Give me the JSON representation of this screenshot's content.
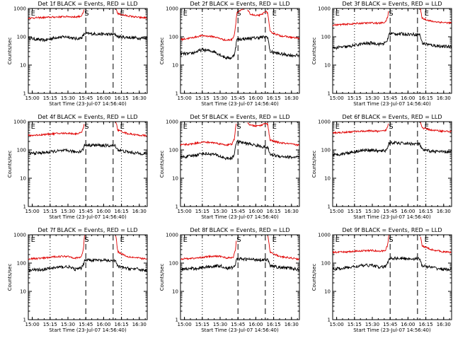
{
  "figure": {
    "background": "#ffffff",
    "events_color": "#000000",
    "lld_color": "#e00000"
  },
  "chart_data": [
    {
      "type": "line",
      "title": "Det 1f BLACK = Events, RED = LLD",
      "xlabel": "Start Time (23-Jul-07 14:56:40)",
      "ylabel": "Counts/sec",
      "y_scale": "log",
      "ylim": [
        1,
        1000
      ],
      "x_ticks": [
        "15:00",
        "15:15",
        "15:30",
        "15:45",
        "16:00",
        "16:15",
        "16:30"
      ],
      "y_ticks": [
        "1",
        "10",
        "100",
        "1000"
      ],
      "markers": [
        {
          "label": "E",
          "time": "15:00"
        },
        {
          "label": "S",
          "time": "15:45"
        },
        {
          "label": "E",
          "time": "16:15"
        }
      ],
      "vlines_dotted": [
        "15:15",
        "16:15"
      ],
      "vlines_dashed": [
        "15:45",
        "16:08"
      ],
      "series": [
        {
          "name": "Events",
          "color": "#000000",
          "x": [
            "14:57",
            "15:10",
            "15:20",
            "15:30",
            "15:36",
            "15:41",
            "15:43",
            "15:44",
            "16:10",
            "16:12",
            "16:20",
            "16:30",
            "16:35"
          ],
          "y": [
            90,
            75,
            95,
            100,
            85,
            90,
            110,
            130,
            120,
            100,
            95,
            90,
            90
          ]
        },
        {
          "name": "LLD",
          "color": "#e00000",
          "x": [
            "14:57",
            "15:10",
            "15:20",
            "15:30",
            "15:36",
            "15:41",
            "15:43",
            "15:44",
            "16:10",
            "16:12",
            "16:20",
            "16:30",
            "16:35"
          ],
          "y": [
            460,
            480,
            500,
            520,
            500,
            540,
            700,
            1100,
            1100,
            650,
            550,
            480,
            470
          ]
        }
      ]
    },
    {
      "type": "line",
      "title": "Det 2f BLACK = Events, RED = LLD",
      "xlabel": "Start Time (23-Jul-07 14:56:40)",
      "ylabel": "Counts/sec",
      "y_scale": "log",
      "ylim": [
        1,
        1000
      ],
      "x_ticks": [
        "15:00",
        "15:15",
        "15:30",
        "15:45",
        "16:00",
        "16:15",
        "16:30"
      ],
      "y_ticks": [
        "1",
        "10",
        "100",
        "1000"
      ],
      "markers": [
        {
          "label": "E",
          "time": "15:00"
        },
        {
          "label": "S",
          "time": "15:45"
        },
        {
          "label": "E",
          "time": "16:15"
        }
      ],
      "vlines_dotted": [
        "15:15",
        "16:15"
      ],
      "vlines_dashed": [
        "15:45",
        "16:08"
      ],
      "series": [
        {
          "name": "Events",
          "color": "#000000",
          "x": [
            "14:57",
            "15:05",
            "15:15",
            "15:25",
            "15:35",
            "15:40",
            "15:42",
            "15:43",
            "15:44",
            "16:10",
            "16:12",
            "16:20",
            "16:30",
            "16:35"
          ],
          "y": [
            25,
            25,
            35,
            30,
            18,
            18,
            25,
            40,
            80,
            100,
            30,
            25,
            22,
            22
          ]
        },
        {
          "name": "LLD",
          "color": "#e00000",
          "x": [
            "14:57",
            "15:05",
            "15:15",
            "15:25",
            "15:35",
            "15:40",
            "15:42",
            "15:43",
            "15:44",
            "15:52",
            "15:55",
            "16:00",
            "16:05",
            "16:08",
            "16:10",
            "16:12",
            "16:20",
            "16:30",
            "16:35"
          ],
          "y": [
            80,
            90,
            110,
            100,
            75,
            80,
            120,
            250,
            700,
            1100,
            650,
            550,
            600,
            800,
            700,
            150,
            110,
            95,
            90
          ]
        }
      ]
    },
    {
      "type": "line",
      "title": "Det 3f BLACK = Events, RED = LLD",
      "xlabel": "Start Time (23-Jul-07 14:56:40)",
      "ylabel": "Counts/sec",
      "y_scale": "log",
      "ylim": [
        1,
        1000
      ],
      "x_ticks": [
        "15:00",
        "15:15",
        "15:30",
        "15:45",
        "16:00",
        "16:15",
        "16:30"
      ],
      "y_ticks": [
        "1",
        "10",
        "100",
        "1000"
      ],
      "markers": [
        {
          "label": "E",
          "time": "15:00"
        },
        {
          "label": "S",
          "time": "15:45"
        },
        {
          "label": "E",
          "time": "16:15"
        }
      ],
      "vlines_dotted": [
        "15:15",
        "16:15"
      ],
      "vlines_dashed": [
        "15:45",
        "16:08"
      ],
      "series": [
        {
          "name": "Events",
          "color": "#000000",
          "x": [
            "14:57",
            "15:10",
            "15:20",
            "15:30",
            "15:36",
            "15:41",
            "15:43",
            "15:44",
            "16:10",
            "16:12",
            "16:20",
            "16:30",
            "16:35"
          ],
          "y": [
            40,
            45,
            55,
            60,
            55,
            60,
            80,
            130,
            120,
            60,
            50,
            45,
            45
          ]
        },
        {
          "name": "LLD",
          "color": "#e00000",
          "x": [
            "14:57",
            "15:10",
            "15:20",
            "15:30",
            "15:36",
            "15:41",
            "15:43",
            "15:44",
            "16:10",
            "16:12",
            "16:20",
            "16:30",
            "16:35"
          ],
          "y": [
            260,
            280,
            300,
            310,
            300,
            330,
            500,
            1100,
            1100,
            450,
            350,
            320,
            310
          ]
        }
      ]
    },
    {
      "type": "line",
      "title": "Det 4f BLACK = Events, RED = LLD",
      "xlabel": "Start Time (23-Jul-07 14:56:40)",
      "ylabel": "Counts/sec",
      "y_scale": "log",
      "ylim": [
        1,
        1000
      ],
      "x_ticks": [
        "15:00",
        "15:15",
        "15:30",
        "15:45",
        "16:00",
        "16:15",
        "16:30"
      ],
      "y_ticks": [
        "1",
        "10",
        "100",
        "1000"
      ],
      "markers": [
        {
          "label": "E",
          "time": "15:00"
        },
        {
          "label": "S",
          "time": "15:45"
        },
        {
          "label": "E",
          "time": "16:15"
        }
      ],
      "vlines_dotted": [
        "15:15",
        "16:15"
      ],
      "vlines_dashed": [
        "15:45",
        "16:08"
      ],
      "series": [
        {
          "name": "Events",
          "color": "#000000",
          "x": [
            "14:57",
            "15:10",
            "15:20",
            "15:30",
            "15:36",
            "15:41",
            "15:43",
            "15:44",
            "16:10",
            "16:12",
            "16:20",
            "16:30",
            "16:35"
          ],
          "y": [
            75,
            80,
            90,
            95,
            85,
            90,
            110,
            150,
            140,
            100,
            85,
            75,
            75
          ]
        },
        {
          "name": "LLD",
          "color": "#e00000",
          "x": [
            "14:57",
            "15:10",
            "15:20",
            "15:30",
            "15:36",
            "15:41",
            "15:43",
            "15:44",
            "16:10",
            "16:12",
            "16:20",
            "16:30",
            "16:35"
          ],
          "y": [
            320,
            350,
            380,
            390,
            370,
            400,
            600,
            1100,
            1100,
            500,
            380,
            330,
            320
          ]
        }
      ]
    },
    {
      "type": "line",
      "title": "Det 5f BLACK = Events, RED = LLD",
      "xlabel": "Start Time (23-Jul-07 14:56:40)",
      "ylabel": "Counts/sec",
      "y_scale": "log",
      "ylim": [
        1,
        1000
      ],
      "x_ticks": [
        "15:00",
        "15:15",
        "15:30",
        "15:45",
        "16:00",
        "16:15",
        "16:30"
      ],
      "y_ticks": [
        "1",
        "10",
        "100",
        "1000"
      ],
      "markers": [
        {
          "label": "E",
          "time": "15:00"
        },
        {
          "label": "S",
          "time": "15:45"
        },
        {
          "label": "E",
          "time": "16:15"
        }
      ],
      "vlines_dotted": [
        "15:15",
        "16:15"
      ],
      "vlines_dashed": [
        "15:45",
        "16:08"
      ],
      "series": [
        {
          "name": "Events",
          "color": "#000000",
          "x": [
            "14:57",
            "15:05",
            "15:15",
            "15:25",
            "15:35",
            "15:40",
            "15:42",
            "15:43",
            "15:44",
            "16:10",
            "16:12",
            "16:20",
            "16:30",
            "16:35"
          ],
          "y": [
            55,
            60,
            75,
            70,
            50,
            50,
            70,
            150,
            200,
            120,
            70,
            60,
            55,
            55
          ]
        },
        {
          "name": "LLD",
          "color": "#e00000",
          "x": [
            "14:57",
            "15:05",
            "15:15",
            "15:25",
            "15:35",
            "15:40",
            "15:42",
            "15:43",
            "15:44",
            "15:52",
            "15:55",
            "16:00",
            "16:05",
            "16:08",
            "16:10",
            "16:12",
            "16:20",
            "16:30",
            "16:35"
          ],
          "y": [
            150,
            160,
            190,
            180,
            150,
            160,
            250,
            600,
            1100,
            1100,
            750,
            700,
            750,
            900,
            800,
            220,
            180,
            160,
            150
          ]
        }
      ]
    },
    {
      "type": "line",
      "title": "Det 6f BLACK = Events, RED = LLD",
      "xlabel": "Start Time (23-Jul-07 14:56:40)",
      "ylabel": "Counts/sec",
      "y_scale": "log",
      "ylim": [
        1,
        1000
      ],
      "x_ticks": [
        "15:00",
        "15:15",
        "15:30",
        "15:45",
        "16:00",
        "16:15",
        "16:30"
      ],
      "y_ticks": [
        "1",
        "10",
        "100",
        "1000"
      ],
      "markers": [
        {
          "label": "E",
          "time": "15:00"
        },
        {
          "label": "S",
          "time": "15:45"
        },
        {
          "label": "E",
          "time": "16:15"
        }
      ],
      "vlines_dotted": [
        "15:15",
        "16:15"
      ],
      "vlines_dashed": [
        "15:45",
        "16:08"
      ],
      "series": [
        {
          "name": "Events",
          "color": "#000000",
          "x": [
            "14:57",
            "15:10",
            "15:20",
            "15:30",
            "15:36",
            "15:41",
            "15:43",
            "15:44",
            "16:10",
            "16:12",
            "16:20",
            "16:30",
            "16:35"
          ],
          "y": [
            65,
            80,
            95,
            100,
            90,
            95,
            120,
            180,
            160,
            100,
            90,
            85,
            85
          ]
        },
        {
          "name": "LLD",
          "color": "#e00000",
          "x": [
            "14:57",
            "15:10",
            "15:20",
            "15:30",
            "15:36",
            "15:41",
            "15:43",
            "15:44",
            "16:10",
            "16:12",
            "16:20",
            "16:30",
            "16:35"
          ],
          "y": [
            400,
            430,
            460,
            470,
            450,
            480,
            650,
            1100,
            1100,
            600,
            500,
            460,
            450
          ]
        }
      ]
    },
    {
      "type": "line",
      "title": "Det 7f BLACK = Events, RED = LLD",
      "xlabel": "Start Time (23-Jul-07 14:56:40)",
      "ylabel": "Counts/sec",
      "y_scale": "log",
      "ylim": [
        1,
        1000
      ],
      "x_ticks": [
        "15:00",
        "15:15",
        "15:30",
        "15:45",
        "16:00",
        "16:15",
        "16:30"
      ],
      "y_ticks": [
        "1",
        "10",
        "100",
        "1000"
      ],
      "markers": [
        {
          "label": "E",
          "time": "15:00"
        },
        {
          "label": "S",
          "time": "15:45"
        },
        {
          "label": "E",
          "time": "16:15"
        }
      ],
      "vlines_dotted": [
        "15:15",
        "16:15"
      ],
      "vlines_dashed": [
        "15:45",
        "16:08"
      ],
      "series": [
        {
          "name": "Events",
          "color": "#000000",
          "x": [
            "14:57",
            "15:10",
            "15:20",
            "15:30",
            "15:36",
            "15:41",
            "15:43",
            "15:44",
            "16:10",
            "16:12",
            "16:20",
            "16:30",
            "16:35"
          ],
          "y": [
            55,
            60,
            70,
            75,
            60,
            65,
            90,
            130,
            120,
            75,
            65,
            60,
            55
          ]
        },
        {
          "name": "LLD",
          "color": "#e00000",
          "x": [
            "14:57",
            "15:10",
            "15:20",
            "15:30",
            "15:36",
            "15:41",
            "15:43",
            "15:44",
            "16:10",
            "16:12",
            "16:20",
            "16:30",
            "16:35"
          ],
          "y": [
            140,
            150,
            170,
            175,
            150,
            160,
            300,
            1100,
            1100,
            250,
            170,
            150,
            140
          ]
        }
      ]
    },
    {
      "type": "line",
      "title": "Det 8f BLACK = Events, RED = LLD",
      "xlabel": "Start Time (23-Jul-07 14:56:40)",
      "ylabel": "Counts/sec",
      "y_scale": "log",
      "ylim": [
        1,
        1000
      ],
      "x_ticks": [
        "15:00",
        "15:15",
        "15:30",
        "15:45",
        "16:00",
        "16:15",
        "16:30"
      ],
      "y_ticks": [
        "1",
        "10",
        "100",
        "1000"
      ],
      "markers": [
        {
          "label": "E",
          "time": "15:00"
        },
        {
          "label": "S",
          "time": "15:45"
        },
        {
          "label": "E",
          "time": "16:15"
        }
      ],
      "vlines_dotted": [
        "15:15",
        "16:15"
      ],
      "vlines_dashed": [
        "15:45",
        "16:08"
      ],
      "series": [
        {
          "name": "Events",
          "color": "#000000",
          "x": [
            "14:57",
            "15:10",
            "15:20",
            "15:30",
            "15:36",
            "15:41",
            "15:43",
            "15:44",
            "16:10",
            "16:12",
            "16:20",
            "16:30",
            "16:35"
          ],
          "y": [
            60,
            65,
            75,
            80,
            65,
            70,
            95,
            140,
            130,
            80,
            70,
            65,
            60
          ]
        },
        {
          "name": "LLD",
          "color": "#e00000",
          "x": [
            "14:57",
            "15:10",
            "15:20",
            "15:30",
            "15:36",
            "15:41",
            "15:43",
            "15:44",
            "16:10",
            "16:12",
            "16:20",
            "16:30",
            "16:35"
          ],
          "y": [
            140,
            150,
            170,
            175,
            150,
            160,
            300,
            1100,
            1100,
            250,
            170,
            150,
            140
          ]
        }
      ]
    },
    {
      "type": "line",
      "title": "Det 9f BLACK = Events, RED = LLD",
      "xlabel": "Start Time (23-Jul-07 14:56:40)",
      "ylabel": "Counts/sec",
      "y_scale": "log",
      "ylim": [
        1,
        1000
      ],
      "x_ticks": [
        "15:00",
        "15:15",
        "15:30",
        "15:45",
        "16:00",
        "16:15",
        "16:30"
      ],
      "y_ticks": [
        "1",
        "10",
        "100",
        "1000"
      ],
      "markers": [
        {
          "label": "E",
          "time": "15:00"
        },
        {
          "label": "S",
          "time": "15:45"
        },
        {
          "label": "E",
          "time": "16:15"
        }
      ],
      "vlines_dotted": [
        "15:15",
        "16:15"
      ],
      "vlines_dashed": [
        "15:45",
        "16:08"
      ],
      "series": [
        {
          "name": "Events",
          "color": "#000000",
          "x": [
            "14:57",
            "15:10",
            "15:20",
            "15:30",
            "15:36",
            "15:41",
            "15:43",
            "15:44",
            "16:10",
            "16:12",
            "16:20",
            "16:30",
            "16:35"
          ],
          "y": [
            60,
            70,
            80,
            85,
            70,
            75,
            100,
            150,
            140,
            80,
            70,
            60,
            60
          ]
        },
        {
          "name": "LLD",
          "color": "#e00000",
          "x": [
            "14:57",
            "15:10",
            "15:20",
            "15:30",
            "15:36",
            "15:41",
            "15:43",
            "15:44",
            "16:10",
            "16:12",
            "16:20",
            "16:30",
            "16:35"
          ],
          "y": [
            240,
            250,
            270,
            280,
            260,
            280,
            450,
            1100,
            1100,
            400,
            300,
            250,
            240
          ]
        }
      ]
    }
  ]
}
